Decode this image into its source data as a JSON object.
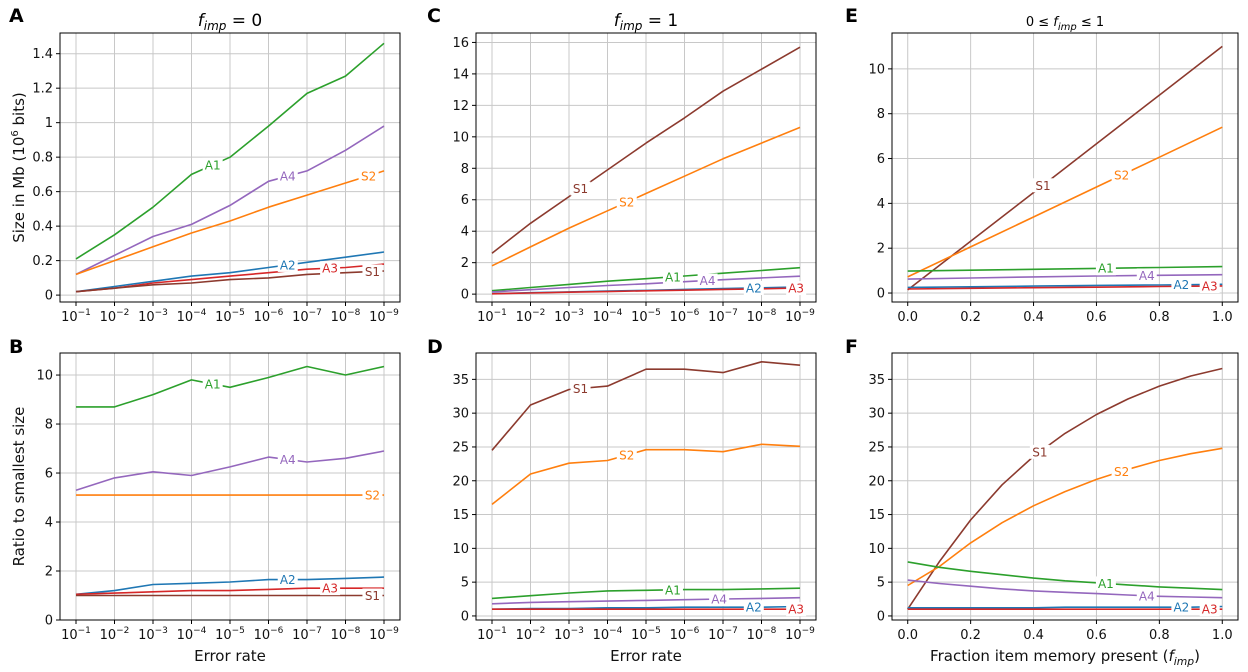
{
  "colors": {
    "A1": "#2ca02c",
    "A2": "#1f77b4",
    "A3": "#d62728",
    "A4": "#9467bd",
    "S1": "#8c3a2e",
    "S2": "#ff7f0e",
    "grid": "#c8c8c8"
  },
  "axis_titles": {
    "error_rate": "Error rate",
    "fraction": "Fraction item memory present (f_imp)",
    "size": "Size in Mb (10^6 bits)",
    "ratio": "Ratio to smallest size"
  },
  "chart_data": [
    {
      "panel": "A",
      "type": "line",
      "title": "f_imp = 0",
      "xlabel": "",
      "ylabel": "Size in Mb (10^6 bits)",
      "categories": [
        "10^-1",
        "10^-2",
        "10^-3",
        "10^-4",
        "10^-5",
        "10^-6",
        "10^-7",
        "10^-8",
        "10^-9"
      ],
      "yticks": [
        0,
        0.2,
        0.4,
        0.6,
        0.8,
        1,
        1.2,
        1.4
      ],
      "ytick_labels": [
        "0",
        "0.2",
        "0.4",
        "0.6",
        "0.8",
        "1",
        "1.2",
        "1.4"
      ],
      "ylim": [
        -0.04,
        1.52
      ],
      "series": [
        {
          "name": "A1",
          "values": [
            0.21,
            0.35,
            0.51,
            0.7,
            0.8,
            0.98,
            1.17,
            1.27,
            1.46
          ]
        },
        {
          "name": "A4",
          "values": [
            0.12,
            0.23,
            0.34,
            0.41,
            0.52,
            0.66,
            0.72,
            0.84,
            0.98
          ]
        },
        {
          "name": "S2",
          "values": [
            0.12,
            0.2,
            0.28,
            0.36,
            0.43,
            0.51,
            0.58,
            0.65,
            0.72
          ]
        },
        {
          "name": "A2",
          "values": [
            0.02,
            0.05,
            0.08,
            0.11,
            0.13,
            0.16,
            0.19,
            0.22,
            0.25
          ]
        },
        {
          "name": "A3",
          "values": [
            0.02,
            0.04,
            0.07,
            0.09,
            0.11,
            0.13,
            0.15,
            0.16,
            0.18
          ]
        },
        {
          "name": "S1",
          "values": [
            0.02,
            0.04,
            0.06,
            0.07,
            0.09,
            0.1,
            0.12,
            0.13,
            0.14
          ]
        }
      ],
      "labels": [
        {
          "series": "A1",
          "i": 3.55
        },
        {
          "series": "A4",
          "i": 5.5
        },
        {
          "series": "S2",
          "i": 7.6
        },
        {
          "series": "A2",
          "i": 5.5
        },
        {
          "series": "A3",
          "i": 6.6
        },
        {
          "series": "S1",
          "i": 7.7
        }
      ]
    },
    {
      "panel": "C",
      "type": "line",
      "title": "f_imp = 1",
      "xlabel": "",
      "ylabel": "",
      "categories": [
        "10^-1",
        "10^-2",
        "10^-3",
        "10^-4",
        "10^-5",
        "10^-6",
        "10^-7",
        "10^-8",
        "10^-9"
      ],
      "yticks": [
        0,
        2,
        4,
        6,
        8,
        10,
        12,
        14,
        16
      ],
      "ytick_labels": [
        "0",
        "2",
        "4",
        "6",
        "8",
        "10",
        "12",
        "14",
        "16"
      ],
      "ylim": [
        -0.5,
        16.6
      ],
      "series": [
        {
          "name": "S1",
          "values": [
            2.6,
            4.5,
            6.2,
            7.9,
            9.6,
            11.2,
            12.9,
            14.3,
            15.7
          ]
        },
        {
          "name": "S2",
          "values": [
            1.8,
            3.0,
            4.2,
            5.3,
            6.4,
            7.5,
            8.6,
            9.6,
            10.6
          ]
        },
        {
          "name": "A1",
          "values": [
            0.22,
            0.42,
            0.62,
            0.82,
            0.98,
            1.15,
            1.33,
            1.5,
            1.68
          ]
        },
        {
          "name": "A4",
          "values": [
            0.14,
            0.28,
            0.42,
            0.55,
            0.66,
            0.79,
            0.92,
            1.03,
            1.14
          ]
        },
        {
          "name": "A2",
          "values": [
            0.03,
            0.09,
            0.14,
            0.19,
            0.24,
            0.3,
            0.35,
            0.4,
            0.46
          ]
        },
        {
          "name": "A3",
          "values": [
            0.02,
            0.07,
            0.12,
            0.16,
            0.21,
            0.25,
            0.3,
            0.34,
            0.39
          ]
        }
      ],
      "labels": [
        {
          "series": "S1",
          "i": 2.3
        },
        {
          "series": "S2",
          "i": 3.5
        },
        {
          "series": "A1",
          "i": 4.7
        },
        {
          "series": "A4",
          "i": 5.6
        },
        {
          "series": "A2",
          "i": 6.8
        },
        {
          "series": "A3",
          "i": 7.9
        }
      ]
    },
    {
      "panel": "E",
      "type": "line",
      "title": "0 ≤ f_imp ≤ 1",
      "xlabel": "",
      "ylabel": "",
      "x": [
        0,
        0.2,
        0.4,
        0.6,
        0.8,
        1.0
      ],
      "xticks": [
        0,
        0.2,
        0.4,
        0.6,
        0.8,
        1.0
      ],
      "xtick_labels": [
        "0.0",
        "0.2",
        "0.4",
        "0.6",
        "0.8",
        "1.0"
      ],
      "xlim": [
        -0.05,
        1.05
      ],
      "yticks": [
        0,
        2,
        4,
        6,
        8,
        10
      ],
      "ytick_labels": [
        "0",
        "2",
        "4",
        "6",
        "8",
        "10"
      ],
      "ylim": [
        -0.4,
        11.6
      ],
      "series": [
        {
          "name": "S1",
          "values": [
            0.14,
            2.31,
            4.48,
            6.66,
            8.83,
            11.0
          ]
        },
        {
          "name": "S2",
          "values": [
            0.72,
            2.06,
            3.39,
            4.73,
            6.06,
            7.4
          ]
        },
        {
          "name": "A1",
          "values": [
            0.98,
            1.02,
            1.06,
            1.1,
            1.14,
            1.18
          ]
        },
        {
          "name": "A4",
          "values": [
            0.62,
            0.67,
            0.72,
            0.76,
            0.79,
            0.82
          ]
        },
        {
          "name": "A2",
          "values": [
            0.25,
            0.28,
            0.31,
            0.34,
            0.36,
            0.39
          ]
        },
        {
          "name": "A3",
          "values": [
            0.18,
            0.21,
            0.24,
            0.26,
            0.29,
            0.32
          ]
        }
      ],
      "labels": [
        {
          "series": "S1",
          "x": 0.43
        },
        {
          "series": "S2",
          "x": 0.68
        },
        {
          "series": "A1",
          "x": 0.63
        },
        {
          "series": "A4",
          "x": 0.76
        },
        {
          "series": "A2",
          "x": 0.87
        },
        {
          "series": "A3",
          "x": 0.96
        }
      ]
    },
    {
      "panel": "B",
      "type": "line",
      "title": "",
      "xlabel": "Error rate",
      "ylabel": "Ratio to smallest size",
      "categories": [
        "10^-1",
        "10^-2",
        "10^-3",
        "10^-4",
        "10^-5",
        "10^-6",
        "10^-7",
        "10^-8",
        "10^-9"
      ],
      "yticks": [
        0,
        2,
        4,
        6,
        8,
        10
      ],
      "ytick_labels": [
        "0",
        "2",
        "4",
        "6",
        "8",
        "10"
      ],
      "ylim": [
        0,
        10.9
      ],
      "series": [
        {
          "name": "A1",
          "values": [
            8.7,
            8.7,
            9.2,
            9.8,
            9.5,
            9.9,
            10.35,
            10.0,
            10.35
          ]
        },
        {
          "name": "A4",
          "values": [
            5.3,
            5.8,
            6.05,
            5.9,
            6.25,
            6.65,
            6.45,
            6.6,
            6.9
          ]
        },
        {
          "name": "S2",
          "values": [
            5.1,
            5.1,
            5.1,
            5.1,
            5.1,
            5.1,
            5.1,
            5.1,
            5.1
          ]
        },
        {
          "name": "A2",
          "values": [
            1.05,
            1.2,
            1.45,
            1.5,
            1.55,
            1.65,
            1.65,
            1.7,
            1.75
          ]
        },
        {
          "name": "A3",
          "values": [
            1.05,
            1.1,
            1.15,
            1.2,
            1.2,
            1.25,
            1.3,
            1.3,
            1.3
          ]
        },
        {
          "name": "S1",
          "values": [
            1.0,
            1.0,
            1.0,
            1.0,
            1.0,
            1.0,
            1.0,
            1.0,
            1.0
          ]
        }
      ],
      "labels": [
        {
          "series": "A1",
          "i": 3.55
        },
        {
          "series": "A4",
          "i": 5.5
        },
        {
          "series": "S2",
          "i": 7.7
        },
        {
          "series": "A2",
          "i": 5.5
        },
        {
          "series": "A3",
          "i": 6.6
        },
        {
          "series": "S1",
          "i": 7.7
        }
      ]
    },
    {
      "panel": "D",
      "type": "line",
      "title": "",
      "xlabel": "Error rate",
      "ylabel": "",
      "categories": [
        "10^-1",
        "10^-2",
        "10^-3",
        "10^-4",
        "10^-5",
        "10^-6",
        "10^-7",
        "10^-8",
        "10^-9"
      ],
      "yticks": [
        0,
        5,
        10,
        15,
        20,
        25,
        30,
        35
      ],
      "ytick_labels": [
        "0",
        "5",
        "10",
        "15",
        "20",
        "25",
        "30",
        "35"
      ],
      "ylim": [
        -0.6,
        38.9
      ],
      "series": [
        {
          "name": "S1",
          "values": [
            24.5,
            31.2,
            33.5,
            34.0,
            36.5,
            36.5,
            36.0,
            37.6,
            37.1
          ]
        },
        {
          "name": "S2",
          "values": [
            16.5,
            21.0,
            22.6,
            23.0,
            24.6,
            24.6,
            24.3,
            25.4,
            25.1
          ]
        },
        {
          "name": "A1",
          "values": [
            2.6,
            3.0,
            3.4,
            3.7,
            3.8,
            3.9,
            3.9,
            4.0,
            4.1
          ]
        },
        {
          "name": "A4",
          "values": [
            1.8,
            2.0,
            2.1,
            2.2,
            2.3,
            2.4,
            2.5,
            2.6,
            2.7
          ]
        },
        {
          "name": "A2",
          "values": [
            1.0,
            1.1,
            1.1,
            1.2,
            1.2,
            1.3,
            1.3,
            1.3,
            1.4
          ]
        },
        {
          "name": "A3",
          "values": [
            1.0,
            1.0,
            1.0,
            1.0,
            1.0,
            1.0,
            1.0,
            1.0,
            1.0
          ]
        }
      ],
      "labels": [
        {
          "series": "S1",
          "i": 2.3
        },
        {
          "series": "S2",
          "i": 3.5
        },
        {
          "series": "A1",
          "i": 4.7
        },
        {
          "series": "A4",
          "i": 5.9
        },
        {
          "series": "A2",
          "i": 6.8
        },
        {
          "series": "A3",
          "i": 7.9
        }
      ]
    },
    {
      "panel": "F",
      "type": "line",
      "title": "",
      "xlabel": "Fraction item memory present (f_imp)",
      "ylabel": "",
      "x": [
        0,
        0.1,
        0.2,
        0.3,
        0.4,
        0.5,
        0.6,
        0.7,
        0.8,
        0.9,
        1.0
      ],
      "xticks": [
        0,
        0.2,
        0.4,
        0.6,
        0.8,
        1.0
      ],
      "xtick_labels": [
        "0.0",
        "0.2",
        "0.4",
        "0.6",
        "0.8",
        "1.0"
      ],
      "xlim": [
        -0.05,
        1.05
      ],
      "yticks": [
        0,
        5,
        10,
        15,
        20,
        25,
        30,
        35
      ],
      "ytick_labels": [
        "0",
        "5",
        "10",
        "15",
        "20",
        "25",
        "30",
        "35"
      ],
      "ylim": [
        -0.6,
        38.9
      ],
      "series": [
        {
          "name": "S1",
          "values": [
            1.0,
            8.0,
            14.2,
            19.4,
            23.6,
            27.0,
            29.8,
            32.1,
            34.0,
            35.5,
            36.6
          ]
        },
        {
          "name": "S2",
          "values": [
            4.5,
            7.3,
            10.8,
            13.8,
            16.3,
            18.4,
            20.2,
            21.7,
            23.0,
            24.0,
            24.8
          ]
        },
        {
          "name": "A1",
          "values": [
            8.0,
            7.2,
            6.6,
            6.1,
            5.6,
            5.2,
            4.9,
            4.6,
            4.3,
            4.1,
            3.9
          ]
        },
        {
          "name": "A4",
          "values": [
            5.3,
            4.8,
            4.4,
            4.0,
            3.7,
            3.5,
            3.3,
            3.1,
            2.9,
            2.8,
            2.7
          ]
        },
        {
          "name": "A2",
          "values": [
            1.2,
            1.2,
            1.2,
            1.2,
            1.2,
            1.3,
            1.3,
            1.3,
            1.3,
            1.3,
            1.4
          ]
        },
        {
          "name": "A3",
          "values": [
            1.0,
            1.0,
            1.0,
            1.0,
            1.0,
            1.0,
            1.0,
            1.0,
            1.0,
            1.0,
            1.0
          ]
        }
      ],
      "labels": [
        {
          "series": "S1",
          "x": 0.42
        },
        {
          "series": "S2",
          "x": 0.68
        },
        {
          "series": "A1",
          "x": 0.63
        },
        {
          "series": "A4",
          "x": 0.76
        },
        {
          "series": "A2",
          "x": 0.87
        },
        {
          "series": "A3",
          "x": 0.96
        }
      ]
    }
  ]
}
